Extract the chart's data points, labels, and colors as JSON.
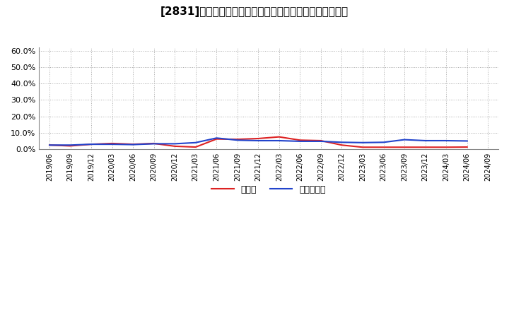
{
  "title": "[2831]　現隈金、有利子負債の総資産に対する比率の推移",
  "background_color": "#ffffff",
  "grid_color": "#aaaaaa",
  "cash_color": "#dd2222",
  "debt_color": "#2244cc",
  "legend_cash": "現隈金",
  "legend_debt": "有利子負債",
  "x_labels": [
    "2019/06",
    "2019/09",
    "2019/12",
    "2020/03",
    "2020/06",
    "2020/09",
    "2020/12",
    "2021/03",
    "2021/06",
    "2021/09",
    "2021/12",
    "2022/03",
    "2022/06",
    "2022/09",
    "2022/12",
    "2023/03",
    "2023/06",
    "2023/09",
    "2023/12",
    "2024/03",
    "2024/06",
    "2024/09"
  ],
  "cash_values": [
    0.025,
    0.02,
    0.03,
    0.035,
    0.03,
    0.035,
    0.018,
    0.013,
    0.062,
    0.06,
    0.065,
    0.075,
    0.055,
    0.052,
    0.025,
    0.012,
    0.012,
    0.012,
    0.012,
    0.012,
    0.013,
    null
  ],
  "debt_values": [
    0.025,
    0.025,
    0.03,
    0.03,
    0.028,
    0.033,
    0.033,
    0.04,
    0.068,
    0.055,
    0.052,
    0.052,
    0.048,
    0.048,
    0.042,
    0.04,
    0.042,
    0.058,
    0.052,
    0.052,
    0.05,
    null
  ],
  "ylim": [
    0.0,
    0.62
  ],
  "yticks": [
    0.0,
    0.1,
    0.2,
    0.3,
    0.4,
    0.5,
    0.6
  ]
}
